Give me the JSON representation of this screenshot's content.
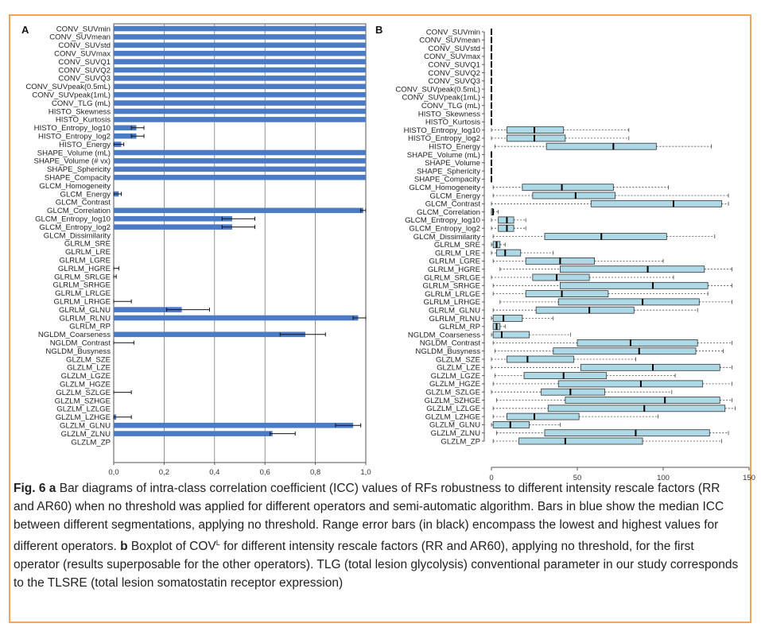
{
  "chart_data": [
    {
      "type": "bar",
      "panel_label": "A",
      "orientation": "horizontal",
      "xlim": [
        0,
        1
      ],
      "xticks": [
        "0,0",
        "0,2",
        "0,4",
        "0,6",
        "0,8",
        "1,0"
      ],
      "grid": "vertical",
      "bar_color": "#4a7bc4",
      "errorbar_color": "#111111",
      "categories": [
        "CONV_SUVmin",
        "CONV_SUVmean",
        "CONV_SUVstd",
        "CONV_SUVmax",
        "CONV_SUVQ1",
        "CONV_SUVQ2",
        "CONV_SUVQ3",
        "CONV_SUVpeak(0.5mL)",
        "CONV_SUVpeak(1mL)",
        "CONV_TLG (mL)",
        "HISTO_Skewness",
        "HISTO_Kurtosis",
        "HISTO_Entropy_log10",
        "HISTO_Entropy_log2",
        "HISTO_Energy",
        "SHAPE_Volume (mL)",
        "SHAPE_Volume (# vx)",
        "SHAPE_Sphericity",
        "SHAPE_Compacity",
        "GLCM_Homogeneity",
        "GLCM_Energy",
        "GLCM_Contrast",
        "GLCM_Correlation",
        "GLCM_Entropy_log10",
        "GLCM_Entropy_log2",
        "GLCM_Dissimilarity",
        "GLRLM_SRE",
        "GLRLM_LRE",
        "GLRLM_LGRE",
        "GLRLM_HGRE",
        "GLRLM_SRLGE",
        "GLRLM_SRHGE",
        "GLRLM_LRLGE",
        "GLRLM_LRHGE",
        "GLRLM_GLNU",
        "GLRLM_RLNU",
        "GLRLM_RP",
        "NGLDM_Coarseness",
        "NGLDM_Contrast",
        "NGLDM_Busyness",
        "GLZLM_SZE",
        "GLZLM_LZE",
        "GLZLM_LGZE",
        "GLZLM_HGZE",
        "GLZLM_SZLGE",
        "GLZLM_SZHGE",
        "GLZLM_LZLGE",
        "GLZLM_LZHGE",
        "GLZLM_GLNU",
        "GLZLM_ZLNU",
        "GLZLM_ZP"
      ],
      "values": [
        1.0,
        1.0,
        1.0,
        1.0,
        1.0,
        1.0,
        1.0,
        1.0,
        1.0,
        1.0,
        1.0,
        1.0,
        0.09,
        0.09,
        0.03,
        1.0,
        1.0,
        1.0,
        1.0,
        0.0,
        0.02,
        0.0,
        0.99,
        0.47,
        0.47,
        0.0,
        0.0,
        0.0,
        0.0,
        0.0,
        0.0,
        0.0,
        0.0,
        0.0,
        0.27,
        0.97,
        0.0,
        0.76,
        0.0,
        0.0,
        0.0,
        0.0,
        0.0,
        0.0,
        0.0,
        0.0,
        0.0,
        0.01,
        0.95,
        0.63,
        0.0
      ],
      "error_low": [
        1.0,
        1.0,
        1.0,
        1.0,
        1.0,
        1.0,
        1.0,
        1.0,
        1.0,
        1.0,
        1.0,
        1.0,
        0.07,
        0.07,
        0.0,
        1.0,
        1.0,
        1.0,
        1.0,
        0.0,
        0.0,
        0.0,
        0.98,
        0.43,
        0.43,
        0.0,
        0.0,
        0.0,
        0.0,
        0.0,
        0.0,
        0.0,
        0.0,
        0.0,
        0.21,
        0.95,
        0.0,
        0.66,
        0.0,
        0.0,
        0.0,
        0.0,
        0.0,
        0.0,
        0.0,
        0.0,
        0.0,
        0.0,
        0.88,
        0.62,
        0.0
      ],
      "error_high": [
        1.0,
        1.0,
        1.0,
        1.0,
        1.0,
        1.0,
        1.0,
        1.0,
        1.0,
        1.0,
        1.0,
        1.0,
        0.12,
        0.12,
        0.04,
        1.0,
        1.0,
        1.0,
        1.0,
        0.0,
        0.03,
        0.0,
        1.0,
        0.56,
        0.56,
        0.0,
        0.0,
        0.0,
        0.0,
        0.02,
        0.01,
        0.0,
        0.0,
        0.07,
        0.38,
        1.0,
        0.0,
        0.84,
        0.08,
        0.0,
        0.0,
        0.0,
        0.0,
        0.0,
        0.07,
        0.0,
        0.0,
        0.07,
        0.98,
        0.72,
        0.0
      ]
    },
    {
      "type": "boxplot",
      "panel_label": "B",
      "orientation": "horizontal",
      "xlim": [
        0,
        150
      ],
      "xticks": [
        "0",
        "50",
        "100",
        "150"
      ],
      "box_color": "#add8e6",
      "categories": [
        "CONV_SUVmin",
        "CONV_SUVmean",
        "CONV_SUVstd",
        "CONV_SUVmax",
        "CONV_SUVQ1",
        "CONV_SUVQ2",
        "CONV_SUVQ3",
        "CONV_SUVpeak(0.5mL)",
        "CONV_SUVpeak(1mL)",
        "CONV_TLG (mL)",
        "HISTO_Skewness",
        "HISTO_Kurtosis",
        "HISTO_Entropy_log10",
        "HISTO_Entropy_log2",
        "HISTO_Energy",
        "SHAPE_Volume (mL)",
        "SHAPE_Volume",
        "SHAPE_Sphericity",
        "SHAPE_Compacity",
        "GLCM_Homogeneity",
        "GLCM_Energy",
        "GLCM_Contrast",
        "GLCM_Correlation",
        "GLCM_Entropy_log10",
        "GLCM_Entropy_log2",
        "GLCM_Dissimilarity",
        "GLRLM_SRE",
        "GLRLM_LRE",
        "GLRLM_LGRE",
        "GLRLM_HGRE",
        "GLRLM_SRLGE",
        "GLRLM_SRHGE",
        "GLRLM_LRLGE",
        "GLRLM_LRHGE",
        "GLRLM_GLNU",
        "GLRLM_RLNU",
        "GLRLM_RP",
        "NGLDM_Coarseness",
        "NGLDM_Contrast",
        "NGLDM_Busyness",
        "GLZLM_SZE",
        "GLZLM_LZE",
        "GLZLM_LGZE",
        "GLZLM_HGZE",
        "GLZLM_SZLGE",
        "GLZLM_SZHGE",
        "GLZLM_LZLGE",
        "GLZLM_LZHGE",
        "GLZLM_GLNU",
        "GLZLM_ZLNU",
        "GLZLM_ZP"
      ],
      "stats": [
        [
          0,
          0,
          0,
          0,
          0
        ],
        [
          0,
          0,
          0,
          0,
          0
        ],
        [
          0,
          0,
          0,
          0,
          0
        ],
        [
          0,
          0,
          0,
          0,
          0
        ],
        [
          0,
          0,
          0,
          0,
          0
        ],
        [
          0,
          0,
          0,
          0,
          0
        ],
        [
          0,
          0,
          0,
          0,
          0
        ],
        [
          0,
          0,
          0,
          0,
          0
        ],
        [
          0,
          0,
          0,
          0,
          0
        ],
        [
          0,
          0,
          0,
          0,
          0
        ],
        [
          0,
          0,
          0,
          0,
          0
        ],
        [
          0,
          0,
          0,
          0,
          0
        ],
        [
          0,
          9,
          25,
          42,
          80
        ],
        [
          0,
          9,
          25,
          43,
          80
        ],
        [
          2,
          32,
          71,
          96,
          128
        ],
        [
          0,
          0,
          0,
          0,
          0
        ],
        [
          0,
          0,
          0,
          0,
          0
        ],
        [
          0,
          0,
          0,
          0,
          0
        ],
        [
          0,
          0,
          0,
          0,
          0
        ],
        [
          1,
          18,
          41,
          71,
          103
        ],
        [
          1,
          24,
          49,
          72,
          138
        ],
        [
          0,
          58,
          106,
          134,
          138
        ],
        [
          0,
          0,
          1,
          1,
          4
        ],
        [
          0,
          4,
          9,
          13,
          20
        ],
        [
          0,
          4,
          9,
          13,
          20
        ],
        [
          1,
          31,
          64,
          102,
          130
        ],
        [
          0,
          1,
          3,
          5,
          8
        ],
        [
          0,
          3,
          8,
          17,
          36
        ],
        [
          1,
          20,
          40,
          60,
          100
        ],
        [
          5,
          40,
          91,
          124,
          140
        ],
        [
          0,
          24,
          38,
          57,
          106
        ],
        [
          1,
          40,
          94,
          126,
          140
        ],
        [
          1,
          20,
          41,
          68,
          126
        ],
        [
          5,
          39,
          88,
          121,
          140
        ],
        [
          1,
          26,
          57,
          83,
          120
        ],
        [
          0,
          1,
          7,
          18,
          36
        ],
        [
          1,
          1,
          3,
          5,
          8
        ],
        [
          0,
          1,
          6,
          22,
          46
        ],
        [
          1,
          50,
          81,
          120,
          140
        ],
        [
          2,
          36,
          86,
          119,
          135
        ],
        [
          0,
          9,
          21,
          48,
          84
        ],
        [
          0,
          52,
          94,
          133,
          140
        ],
        [
          2,
          19,
          42,
          67,
          107
        ],
        [
          1,
          39,
          87,
          123,
          140
        ],
        [
          0,
          29,
          46,
          66,
          105
        ],
        [
          3,
          43,
          101,
          133,
          140
        ],
        [
          1,
          33,
          89,
          136,
          142
        ],
        [
          1,
          9,
          25,
          51,
          97
        ],
        [
          0,
          1,
          11,
          22,
          40
        ],
        [
          3,
          31,
          84,
          127,
          138
        ],
        [
          1,
          16,
          43,
          88,
          134
        ]
      ]
    }
  ],
  "caption": {
    "fig_label": "Fig. 6",
    "a_label": "a",
    "a_text": " Bar diagrams of intra-class correlation coefficient (ICC) values of RFs robustness to different intensity rescale factors (RR and AR60) when no threshold was applied for different operators and semi-automatic algorithm. Bars in blue show the median ICC between different segmentations, applying no threshold. Range error bars (in black) encompass the lowest and highest values for different operators.",
    "b_label": "b",
    "b_pre": " Boxplot of COV",
    "b_sup": "L",
    "b_text": " for different intensity rescale factors (RR and AR60), applying no threshold, for the first operator (results superposable for the other operators). TLG (total lesion glycolysis) conventional parameter in our study corresponds to the TLSRE (total lesion somatostatin receptor expression)"
  }
}
